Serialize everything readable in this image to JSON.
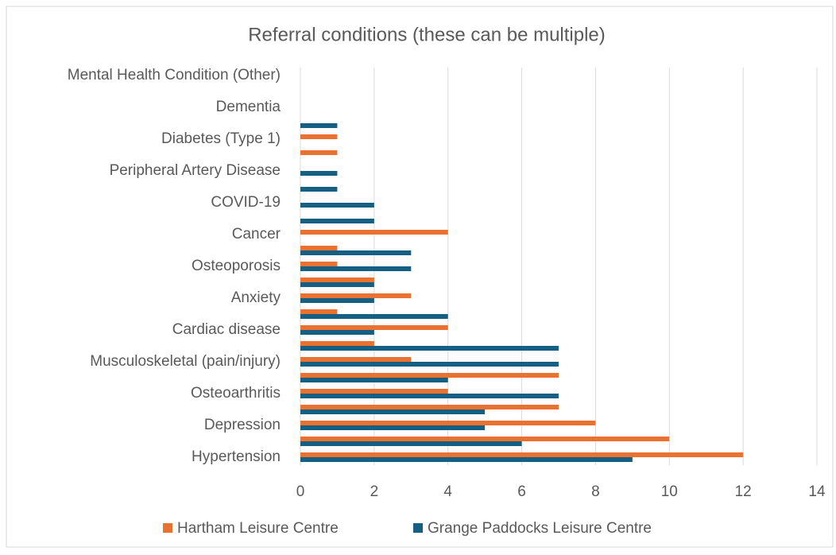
{
  "chart_data": {
    "type": "bar",
    "orientation": "horizontal",
    "title": "Referral conditions (these can be multiple)",
    "categories": [
      "Hypertension",
      null,
      "Depression",
      null,
      "Osteoarthritis",
      null,
      "Musculoskeletal (pain/injury)",
      null,
      "Cardiac disease",
      null,
      "Anxiety",
      null,
      "Osteoporosis",
      null,
      "Cancer",
      null,
      "COVID-19",
      null,
      "Peripheral Artery Disease",
      null,
      "Diabetes (Type 1)",
      null,
      "Dementia",
      null,
      "Mental Health Condition (Other)"
    ],
    "series": [
      {
        "name": "Hartham Leisure Centre",
        "color": "#e97132",
        "values": [
          12,
          10,
          8,
          7,
          4,
          7,
          3,
          2,
          4,
          1,
          3,
          2,
          1,
          1,
          4,
          0,
          0,
          0,
          0,
          1,
          1,
          0,
          0,
          0,
          0
        ]
      },
      {
        "name": "Grange Paddocks Leisure Centre",
        "color": "#156082",
        "values": [
          9,
          6,
          5,
          5,
          7,
          4,
          7,
          7,
          2,
          4,
          2,
          2,
          3,
          3,
          0,
          2,
          2,
          1,
          1,
          0,
          0,
          1,
          0,
          0,
          0
        ]
      }
    ],
    "xlim": [
      0,
      14
    ],
    "xticks": [
      0,
      2,
      4,
      6,
      8,
      10,
      12,
      14
    ],
    "grid": true,
    "legend": "bottom"
  }
}
